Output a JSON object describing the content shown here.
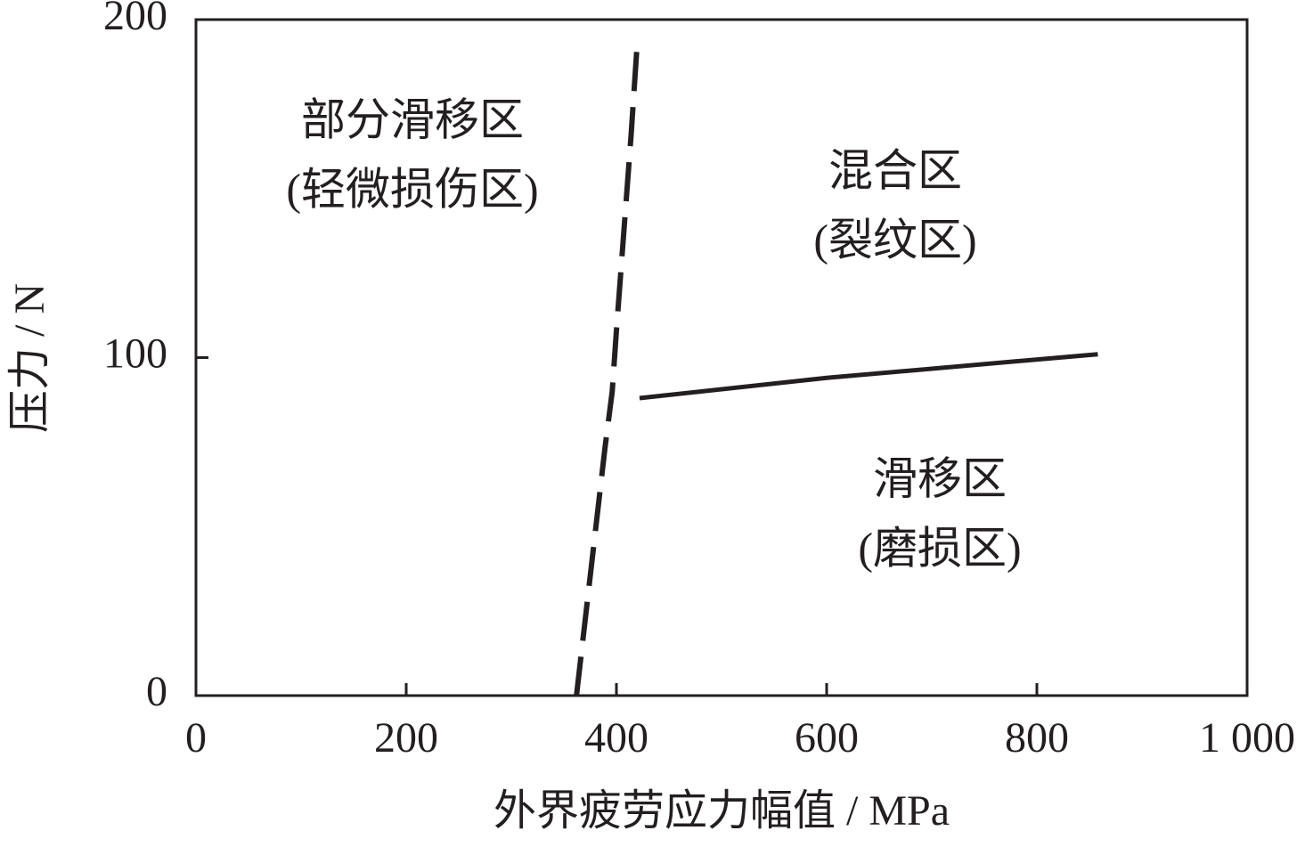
{
  "chart_data": {
    "type": "line",
    "xlabel": "外界疲劳应力幅值 / MPa",
    "ylabel": "压力 / N",
    "xlim": [
      0,
      1000
    ],
    "xticks": [
      0,
      200,
      400,
      600,
      800,
      {
        "value": 1000,
        "label": "1 000"
      }
    ],
    "ylim": [
      0,
      200
    ],
    "yticks": [
      0,
      100,
      200
    ],
    "series": [
      {
        "color": "#231f20",
        "dashed": true,
        "x": [
          362,
          389,
          396,
          400,
          414,
          420
        ],
        "values": [
          0,
          73,
          90,
          108,
          166,
          194
        ]
      },
      {
        "color": "#231f20",
        "dashed": false,
        "x": [
          422,
          600,
          858
        ],
        "values": [
          88,
          94,
          101
        ]
      }
    ],
    "annotations": [
      [
        "部分滑移区",
        "(轻微损伤区)"
      ],
      [
        "混合区",
        "(裂纹区)"
      ],
      [
        "滑移区",
        "(磨损区)"
      ]
    ]
  }
}
